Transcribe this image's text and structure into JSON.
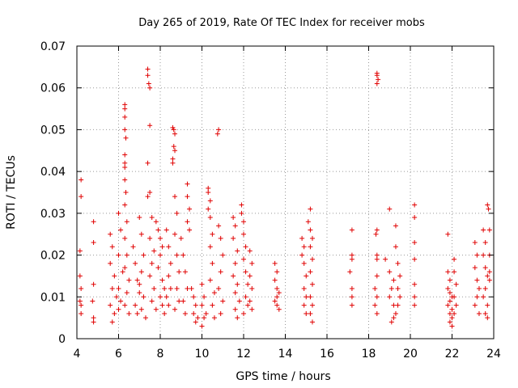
{
  "chart_data": {
    "type": "scatter",
    "title": "Day 265 of 2019, Rate Of TEC Index for receiver mobs",
    "xlabel": "GPS time / hours",
    "ylabel": "ROTI / TECUs",
    "xlim": [
      4,
      24
    ],
    "ylim": [
      0,
      0.07
    ],
    "x_ticks": [
      "4",
      "6",
      "8",
      "10",
      "12",
      "14",
      "16",
      "18",
      "20",
      "22",
      "24"
    ],
    "y_ticks": [
      "0",
      "0.01",
      "0.02",
      "0.03",
      "0.04",
      "0.05",
      "0.06",
      "0.07"
    ],
    "grid": true,
    "marker": "+",
    "color": "#e00000",
    "series": [
      {
        "name": "mobs",
        "points": [
          [
            4.2,
            0.038
          ],
          [
            4.2,
            0.034
          ],
          [
            4.15,
            0.021
          ],
          [
            4.15,
            0.015
          ],
          [
            4.2,
            0.012
          ],
          [
            4.15,
            0.009
          ],
          [
            4.2,
            0.008
          ],
          [
            4.2,
            0.006
          ],
          [
            4.8,
            0.028
          ],
          [
            4.8,
            0.023
          ],
          [
            4.8,
            0.013
          ],
          [
            4.75,
            0.009
          ],
          [
            4.8,
            0.005
          ],
          [
            4.8,
            0.004
          ],
          [
            5.6,
            0.025
          ],
          [
            5.7,
            0.022
          ],
          [
            5.6,
            0.018
          ],
          [
            5.8,
            0.015
          ],
          [
            5.7,
            0.012
          ],
          [
            5.9,
            0.01
          ],
          [
            5.6,
            0.008
          ],
          [
            5.8,
            0.006
          ],
          [
            5.7,
            0.004
          ],
          [
            6.0,
            0.03
          ],
          [
            6.1,
            0.026
          ],
          [
            6.0,
            0.02
          ],
          [
            6.2,
            0.016
          ],
          [
            6.0,
            0.012
          ],
          [
            6.1,
            0.009
          ],
          [
            6.0,
            0.007
          ],
          [
            6.3,
            0.056
          ],
          [
            6.3,
            0.055
          ],
          [
            6.3,
            0.053
          ],
          [
            6.3,
            0.05
          ],
          [
            6.35,
            0.048
          ],
          [
            6.3,
            0.044
          ],
          [
            6.3,
            0.042
          ],
          [
            6.3,
            0.041
          ],
          [
            6.3,
            0.038
          ],
          [
            6.35,
            0.035
          ],
          [
            6.3,
            0.032
          ],
          [
            6.4,
            0.028
          ],
          [
            6.3,
            0.024
          ],
          [
            6.4,
            0.02
          ],
          [
            6.3,
            0.017
          ],
          [
            6.5,
            0.014
          ],
          [
            6.4,
            0.011
          ],
          [
            6.3,
            0.008
          ],
          [
            6.5,
            0.006
          ],
          [
            6.7,
            0.022
          ],
          [
            6.8,
            0.018
          ],
          [
            6.9,
            0.014
          ],
          [
            7.0,
            0.011
          ],
          [
            6.8,
            0.008
          ],
          [
            6.9,
            0.006
          ],
          [
            7.0,
            0.029
          ],
          [
            7.1,
            0.025
          ],
          [
            7.2,
            0.02
          ],
          [
            7.1,
            0.016
          ],
          [
            7.0,
            0.013
          ],
          [
            7.2,
            0.01
          ],
          [
            7.1,
            0.007
          ],
          [
            7.3,
            0.005
          ],
          [
            7.4,
            0.0645
          ],
          [
            7.4,
            0.063
          ],
          [
            7.45,
            0.061
          ],
          [
            7.5,
            0.06
          ],
          [
            7.5,
            0.051
          ],
          [
            7.4,
            0.042
          ],
          [
            7.5,
            0.035
          ],
          [
            7.4,
            0.034
          ],
          [
            7.6,
            0.029
          ],
          [
            7.5,
            0.024
          ],
          [
            7.7,
            0.021
          ],
          [
            7.6,
            0.018
          ],
          [
            7.5,
            0.015
          ],
          [
            7.7,
            0.012
          ],
          [
            7.6,
            0.009
          ],
          [
            7.8,
            0.007
          ],
          [
            7.8,
            0.028
          ],
          [
            7.9,
            0.026
          ],
          [
            8.0,
            0.024
          ],
          [
            8.1,
            0.022
          ],
          [
            8.0,
            0.02
          ],
          [
            7.9,
            0.017
          ],
          [
            8.1,
            0.014
          ],
          [
            8.2,
            0.012
          ],
          [
            8.0,
            0.01
          ],
          [
            8.1,
            0.008
          ],
          [
            8.2,
            0.006
          ],
          [
            8.3,
            0.026
          ],
          [
            8.4,
            0.022
          ],
          [
            8.5,
            0.018
          ],
          [
            8.4,
            0.015
          ],
          [
            8.5,
            0.012
          ],
          [
            8.3,
            0.01
          ],
          [
            8.4,
            0.008
          ],
          [
            8.6,
            0.0505
          ],
          [
            8.65,
            0.05
          ],
          [
            8.7,
            0.049
          ],
          [
            8.65,
            0.046
          ],
          [
            8.7,
            0.045
          ],
          [
            8.6,
            0.043
          ],
          [
            8.6,
            0.042
          ],
          [
            8.7,
            0.034
          ],
          [
            8.8,
            0.03
          ],
          [
            8.7,
            0.025
          ],
          [
            8.8,
            0.02
          ],
          [
            8.9,
            0.016
          ],
          [
            8.8,
            0.012
          ],
          [
            8.9,
            0.009
          ],
          [
            8.7,
            0.007
          ],
          [
            9.0,
            0.024
          ],
          [
            9.1,
            0.02
          ],
          [
            9.2,
            0.016
          ],
          [
            9.3,
            0.012
          ],
          [
            9.1,
            0.009
          ],
          [
            9.2,
            0.006
          ],
          [
            9.3,
            0.037
          ],
          [
            9.3,
            0.034
          ],
          [
            9.4,
            0.031
          ],
          [
            9.3,
            0.028
          ],
          [
            9.4,
            0.026
          ],
          [
            9.5,
            0.012
          ],
          [
            9.6,
            0.01
          ],
          [
            9.7,
            0.008
          ],
          [
            9.6,
            0.006
          ],
          [
            9.8,
            0.005
          ],
          [
            9.7,
            0.004
          ],
          [
            10.0,
            0.013
          ],
          [
            10.1,
            0.01
          ],
          [
            10.0,
            0.008
          ],
          [
            10.2,
            0.006
          ],
          [
            10.1,
            0.005
          ],
          [
            10.0,
            0.003
          ],
          [
            10.3,
            0.036
          ],
          [
            10.3,
            0.035
          ],
          [
            10.4,
            0.033
          ],
          [
            10.3,
            0.031
          ],
          [
            10.4,
            0.029
          ],
          [
            10.5,
            0.025
          ],
          [
            10.4,
            0.022
          ],
          [
            10.5,
            0.018
          ],
          [
            10.4,
            0.014
          ],
          [
            10.6,
            0.011
          ],
          [
            10.5,
            0.008
          ],
          [
            10.6,
            0.005
          ],
          [
            10.8,
            0.05
          ],
          [
            10.75,
            0.049
          ],
          [
            10.8,
            0.027
          ],
          [
            10.9,
            0.024
          ],
          [
            11.0,
            0.02
          ],
          [
            10.9,
            0.016
          ],
          [
            10.8,
            0.012
          ],
          [
            11.0,
            0.009
          ],
          [
            10.9,
            0.006
          ],
          [
            11.5,
            0.029
          ],
          [
            11.6,
            0.027
          ],
          [
            11.5,
            0.024
          ],
          [
            11.7,
            0.021
          ],
          [
            11.6,
            0.018
          ],
          [
            11.5,
            0.015
          ],
          [
            11.7,
            0.013
          ],
          [
            11.6,
            0.011
          ],
          [
            11.8,
            0.009
          ],
          [
            11.6,
            0.007
          ],
          [
            11.7,
            0.005
          ],
          [
            11.9,
            0.032
          ],
          [
            11.9,
            0.03
          ],
          [
            12.0,
            0.028
          ],
          [
            12.0,
            0.025
          ],
          [
            12.1,
            0.022
          ],
          [
            12.0,
            0.019
          ],
          [
            12.1,
            0.016
          ],
          [
            12.2,
            0.013
          ],
          [
            12.1,
            0.01
          ],
          [
            12.2,
            0.008
          ],
          [
            12.0,
            0.006
          ],
          [
            12.3,
            0.021
          ],
          [
            12.4,
            0.018
          ],
          [
            12.3,
            0.015
          ],
          [
            12.4,
            0.012
          ],
          [
            12.3,
            0.009
          ],
          [
            12.4,
            0.007
          ],
          [
            13.5,
            0.018
          ],
          [
            13.6,
            0.016
          ],
          [
            13.5,
            0.014
          ],
          [
            13.6,
            0.012
          ],
          [
            13.7,
            0.011
          ],
          [
            13.6,
            0.01
          ],
          [
            13.5,
            0.009
          ],
          [
            13.6,
            0.008
          ],
          [
            13.7,
            0.007
          ],
          [
            14.8,
            0.024
          ],
          [
            14.9,
            0.022
          ],
          [
            14.8,
            0.02
          ],
          [
            14.9,
            0.018
          ],
          [
            15.0,
            0.015
          ],
          [
            14.9,
            0.012
          ],
          [
            15.0,
            0.01
          ],
          [
            14.9,
            0.008
          ],
          [
            15.0,
            0.006
          ],
          [
            15.2,
            0.031
          ],
          [
            15.1,
            0.028
          ],
          [
            15.2,
            0.026
          ],
          [
            15.3,
            0.024
          ],
          [
            15.2,
            0.022
          ],
          [
            15.3,
            0.019
          ],
          [
            15.2,
            0.016
          ],
          [
            15.3,
            0.013
          ],
          [
            15.2,
            0.01
          ],
          [
            15.3,
            0.008
          ],
          [
            15.2,
            0.006
          ],
          [
            15.3,
            0.004
          ],
          [
            17.2,
            0.026
          ],
          [
            17.2,
            0.02
          ],
          [
            17.2,
            0.019
          ],
          [
            17.1,
            0.016
          ],
          [
            17.2,
            0.012
          ],
          [
            17.2,
            0.01
          ],
          [
            17.2,
            0.008
          ],
          [
            18.4,
            0.0635
          ],
          [
            18.4,
            0.063
          ],
          [
            18.45,
            0.062
          ],
          [
            18.4,
            0.061
          ],
          [
            18.4,
            0.026
          ],
          [
            18.35,
            0.025
          ],
          [
            18.4,
            0.02
          ],
          [
            18.4,
            0.019
          ],
          [
            18.4,
            0.015
          ],
          [
            18.3,
            0.012
          ],
          [
            18.4,
            0.01
          ],
          [
            18.3,
            0.008
          ],
          [
            18.4,
            0.006
          ],
          [
            18.8,
            0.019
          ],
          [
            19.0,
            0.031
          ],
          [
            19.0,
            0.016
          ],
          [
            19.2,
            0.014
          ],
          [
            19.1,
            0.012
          ],
          [
            19.0,
            0.01
          ],
          [
            19.2,
            0.008
          ],
          [
            19.3,
            0.006
          ],
          [
            19.2,
            0.005
          ],
          [
            19.1,
            0.004
          ],
          [
            19.3,
            0.027
          ],
          [
            19.3,
            0.022
          ],
          [
            19.4,
            0.018
          ],
          [
            19.5,
            0.015
          ],
          [
            19.4,
            0.012
          ],
          [
            19.5,
            0.01
          ],
          [
            19.4,
            0.008
          ],
          [
            20.2,
            0.032
          ],
          [
            20.2,
            0.029
          ],
          [
            20.2,
            0.023
          ],
          [
            20.2,
            0.019
          ],
          [
            20.2,
            0.013
          ],
          [
            20.2,
            0.01
          ],
          [
            20.2,
            0.008
          ],
          [
            21.8,
            0.025
          ],
          [
            21.8,
            0.016
          ],
          [
            21.9,
            0.014
          ],
          [
            21.8,
            0.012
          ],
          [
            21.9,
            0.011
          ],
          [
            22.0,
            0.01
          ],
          [
            21.9,
            0.009
          ],
          [
            21.8,
            0.008
          ],
          [
            22.0,
            0.007
          ],
          [
            21.9,
            0.006
          ],
          [
            22.0,
            0.005
          ],
          [
            21.9,
            0.004
          ],
          [
            22.0,
            0.003
          ],
          [
            22.1,
            0.019
          ],
          [
            22.1,
            0.016
          ],
          [
            22.2,
            0.013
          ],
          [
            22.1,
            0.01
          ],
          [
            22.2,
            0.008
          ],
          [
            22.1,
            0.006
          ],
          [
            23.1,
            0.023
          ],
          [
            23.2,
            0.02
          ],
          [
            23.1,
            0.017
          ],
          [
            23.2,
            0.014
          ],
          [
            23.3,
            0.012
          ],
          [
            23.2,
            0.01
          ],
          [
            23.1,
            0.008
          ],
          [
            23.3,
            0.006
          ],
          [
            23.5,
            0.026
          ],
          [
            23.6,
            0.023
          ],
          [
            23.5,
            0.02
          ],
          [
            23.6,
            0.017
          ],
          [
            23.7,
            0.015
          ],
          [
            23.6,
            0.012
          ],
          [
            23.5,
            0.01
          ],
          [
            23.7,
            0.008
          ],
          [
            23.6,
            0.006
          ],
          [
            23.7,
            0.005
          ],
          [
            23.7,
            0.032
          ],
          [
            23.75,
            0.031
          ],
          [
            23.8,
            0.026
          ],
          [
            23.8,
            0.02
          ],
          [
            23.8,
            0.016
          ],
          [
            23.8,
            0.014
          ]
        ]
      }
    ]
  }
}
